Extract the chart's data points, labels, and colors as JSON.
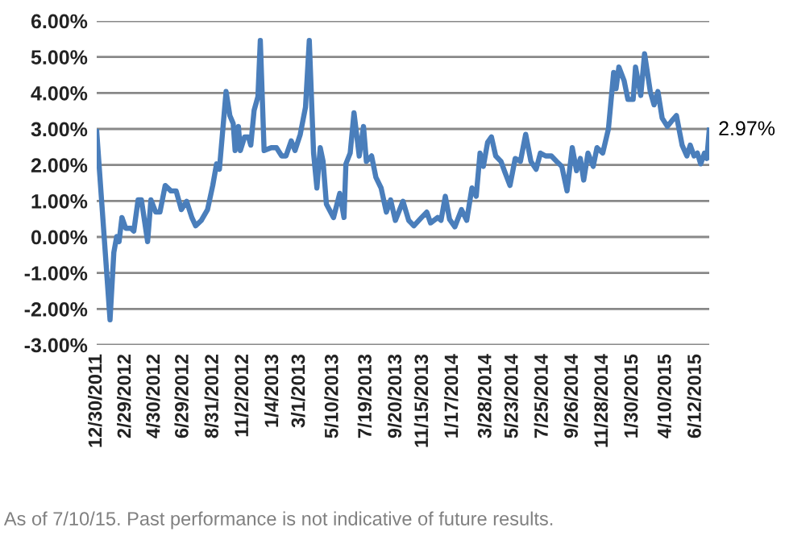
{
  "chart_data": {
    "type": "line",
    "x": [
      "2011-12-30",
      "2012-01-27",
      "2012-02-04",
      "2012-02-10",
      "2012-02-15",
      "2012-02-21",
      "2012-02-29",
      "2012-03-11",
      "2012-03-17",
      "2012-03-26",
      "2012-04-02",
      "2012-04-15",
      "2012-04-22",
      "2012-05-02",
      "2012-05-11",
      "2012-05-22",
      "2012-06-03",
      "2012-06-14",
      "2012-06-25",
      "2012-07-06",
      "2012-07-17",
      "2012-07-25",
      "2012-08-06",
      "2012-08-19",
      "2012-08-30",
      "2012-09-07",
      "2012-09-13",
      "2012-09-27",
      "2012-10-05",
      "2012-10-12",
      "2012-10-16",
      "2012-10-23",
      "2012-10-27",
      "2012-11-05",
      "2012-11-13",
      "2012-11-18",
      "2012-11-25",
      "2012-12-03",
      "2012-12-08",
      "2012-12-16",
      "2012-12-31",
      "2013-01-11",
      "2013-01-22",
      "2013-01-31",
      "2013-02-11",
      "2013-02-19",
      "2013-03-02",
      "2013-03-13",
      "2013-03-21",
      "2013-03-30",
      "2013-04-06",
      "2013-04-13",
      "2013-04-19",
      "2013-04-26",
      "2013-05-11",
      "2013-05-24",
      "2013-06-02",
      "2013-06-06",
      "2013-06-15",
      "2013-06-23",
      "2013-07-04",
      "2013-07-13",
      "2013-07-19",
      "2013-07-30",
      "2013-08-08",
      "2013-08-19",
      "2013-08-30",
      "2013-09-08",
      "2013-09-18",
      "2013-10-04",
      "2013-10-16",
      "2013-10-27",
      "2013-11-12",
      "2013-11-23",
      "2013-12-01",
      "2013-12-16",
      "2013-12-23",
      "2014-01-01",
      "2014-01-10",
      "2014-01-21",
      "2014-02-04",
      "2014-02-15",
      "2014-02-26",
      "2014-03-07",
      "2014-03-15",
      "2014-03-22",
      "2014-03-31",
      "2014-04-08",
      "2014-04-17",
      "2014-04-28",
      "2014-05-06",
      "2014-05-17",
      "2014-05-28",
      "2014-06-08",
      "2014-06-19",
      "2014-06-30",
      "2014-07-11",
      "2014-07-20",
      "2014-07-31",
      "2014-08-12",
      "2014-08-23",
      "2014-09-03",
      "2014-09-14",
      "2014-09-25",
      "2014-10-04",
      "2014-10-12",
      "2014-10-19",
      "2014-10-28",
      "2014-11-08",
      "2014-11-16",
      "2014-11-28",
      "2014-12-10",
      "2014-12-21",
      "2014-12-26",
      "2015-01-01",
      "2015-01-12",
      "2015-01-20",
      "2015-01-31",
      "2015-02-05",
      "2015-02-16",
      "2015-02-24",
      "2015-03-08",
      "2015-03-16",
      "2015-03-24",
      "2015-04-02",
      "2015-04-13",
      "2015-04-22",
      "2015-05-02",
      "2015-05-14",
      "2015-05-24",
      "2015-05-31",
      "2015-06-08",
      "2015-06-15",
      "2015-06-22",
      "2015-06-30",
      "2015-07-05",
      "2015-07-10"
    ],
    "series": [
      {
        "color": "#4a7ebb",
        "values": [
          2.93,
          -2.3,
          -0.43,
          0.01,
          -0.13,
          0.54,
          0.24,
          0.24,
          0.16,
          1.03,
          1.03,
          -0.13,
          1.03,
          0.69,
          0.69,
          1.43,
          1.28,
          1.28,
          0.76,
          0.99,
          0.54,
          0.31,
          0.46,
          0.76,
          1.43,
          2.03,
          1.88,
          4.04,
          3.37,
          3.15,
          2.4,
          3.07,
          2.4,
          2.78,
          2.78,
          2.55,
          3.52,
          3.9,
          5.46,
          2.4,
          2.48,
          2.48,
          2.25,
          2.25,
          2.67,
          2.4,
          2.85,
          3.6,
          5.46,
          2.33,
          1.36,
          2.48,
          2.1,
          0.91,
          0.54,
          1.21,
          0.54,
          2.03,
          2.33,
          3.45,
          2.25,
          3.07,
          2.1,
          2.25,
          1.66,
          1.36,
          0.69,
          1.03,
          0.46,
          0.99,
          0.46,
          0.31,
          0.54,
          0.69,
          0.39,
          0.54,
          0.46,
          1.13,
          0.49,
          0.28,
          0.76,
          0.46,
          1.36,
          1.13,
          2.33,
          1.96,
          2.63,
          2.78,
          2.25,
          2.1,
          1.81,
          1.43,
          2.18,
          2.1,
          2.85,
          2.1,
          1.88,
          2.33,
          2.25,
          2.25,
          2.1,
          1.96,
          1.28,
          2.48,
          1.84,
          2.18,
          1.58,
          2.33,
          1.96,
          2.48,
          2.33,
          3.0,
          4.57,
          4.12,
          4.72,
          4.34,
          3.82,
          3.82,
          4.72,
          3.93,
          5.09,
          4.04,
          3.67,
          4.04,
          3.3,
          3.07,
          3.22,
          3.37,
          2.55,
          2.25,
          2.55,
          2.25,
          2.33,
          2.03,
          2.33,
          2.18,
          2.97
        ]
      }
    ],
    "xlim": [
      "2011-12-30",
      "2015-07-10"
    ],
    "xticks": [
      {
        "value": "2011-12-30",
        "label": "12/30/2011"
      },
      {
        "value": "2012-02-29",
        "label": "2/29/2012"
      },
      {
        "value": "2012-04-30",
        "label": "4/30/2012"
      },
      {
        "value": "2012-06-29",
        "label": "6/29/2012"
      },
      {
        "value": "2012-08-31",
        "label": "8/31/2012"
      },
      {
        "value": "2012-11-02",
        "label": "11/2/2012"
      },
      {
        "value": "2013-01-04",
        "label": "1/4/2013"
      },
      {
        "value": "2013-03-01",
        "label": "3/1/2013"
      },
      {
        "value": "2013-05-10",
        "label": "5/10/2013"
      },
      {
        "value": "2013-07-19",
        "label": "7/19/2013"
      },
      {
        "value": "2013-09-20",
        "label": "9/20/2013"
      },
      {
        "value": "2013-11-15",
        "label": "11/15/2013"
      },
      {
        "value": "2014-01-17",
        "label": "1/17/2014"
      },
      {
        "value": "2014-03-28",
        "label": "3/28/2014"
      },
      {
        "value": "2014-05-23",
        "label": "5/23/2014"
      },
      {
        "value": "2014-07-25",
        "label": "7/25/2014"
      },
      {
        "value": "2014-09-26",
        "label": "9/26/2014"
      },
      {
        "value": "2014-11-28",
        "label": "11/28/2014"
      },
      {
        "value": "2015-01-30",
        "label": "1/30/2015"
      },
      {
        "value": "2015-04-10",
        "label": "4/10/2015"
      },
      {
        "value": "2015-06-12",
        "label": "6/12/2015"
      }
    ],
    "ylim": [
      -3,
      6
    ],
    "yticks": [
      {
        "value": -3,
        "label": "-3.00%"
      },
      {
        "value": -2,
        "label": "-2.00%"
      },
      {
        "value": -1,
        "label": "-1.00%"
      },
      {
        "value": 0,
        "label": "0.00%"
      },
      {
        "value": 1,
        "label": "1.00%"
      },
      {
        "value": 2,
        "label": "2.00%"
      },
      {
        "value": 3,
        "label": "3.00%"
      },
      {
        "value": 4,
        "label": "4.00%"
      },
      {
        "value": 5,
        "label": "5.00%"
      },
      {
        "value": 6,
        "label": "6.00%"
      }
    ],
    "grid": "y",
    "marker": "none",
    "line_style": "solid",
    "annotations": [
      {
        "text": "2.97%",
        "x": "2015-07-10",
        "y": 2.97
      },
      "As of 7/10/15. Past performance is not indicative of future results."
    ]
  }
}
